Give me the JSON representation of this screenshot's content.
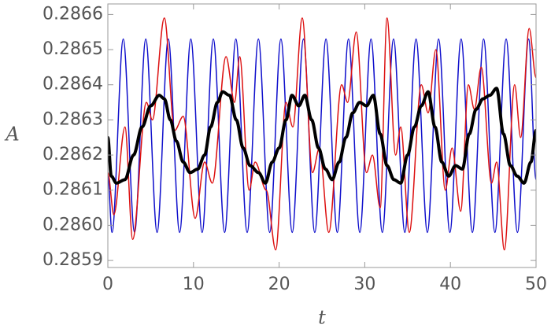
{
  "chart_data": {
    "type": "line",
    "x_label": "t",
    "y_label": "A",
    "xlim": [
      0,
      50
    ],
    "xticks": [
      0,
      10,
      20,
      30,
      40,
      50
    ],
    "ylim": [
      0.28588,
      0.28663
    ],
    "yticks": [
      0.2859,
      {
        "value": 0.286,
        "label": "0.2860"
      },
      0.2861,
      0.2862,
      0.2863,
      0.2864,
      0.2865,
      0.2866
    ],
    "series": [
      {
        "color": "#1010cc",
        "width": 1.5,
        "x": [
          0,
          0.49,
          1.8,
          3.12,
          4.43,
          5.75,
          7.06,
          8.38,
          9.69,
          11.01,
          12.32,
          13.64,
          14.95,
          16.27,
          17.58,
          18.9,
          20.21,
          21.53,
          22.84,
          24.16,
          25.47,
          26.79,
          28.1,
          29.42,
          30.73,
          32.05,
          33.36,
          34.68,
          35.99,
          37.31,
          38.62,
          39.94,
          41.25,
          42.57,
          43.88,
          45.2,
          46.51,
          47.83,
          49.14,
          50
        ],
        "values": [
          0.28614,
          0.28598,
          0.28653,
          0.28598,
          0.28653,
          0.28598,
          0.28653,
          0.28598,
          0.28653,
          0.28598,
          0.28653,
          0.28598,
          0.28653,
          0.28598,
          0.28653,
          0.28598,
          0.28653,
          0.28598,
          0.28653,
          0.28598,
          0.28653,
          0.28598,
          0.28653,
          0.28598,
          0.28653,
          0.28598,
          0.28653,
          0.28598,
          0.28653,
          0.28598,
          0.28653,
          0.28598,
          0.28653,
          0.28598,
          0.28653,
          0.28598,
          0.28653,
          0.28598,
          0.28653,
          0.28613
        ]
      },
      {
        "color": "#dd1111",
        "width": 1.5,
        "x": [
          0,
          0.7,
          2.0,
          2.9,
          4.5,
          5.2,
          6.6,
          7.8,
          8.8,
          10.2,
          11.3,
          12.2,
          13.8,
          14.8,
          15.4,
          16.5,
          17.2,
          18.5,
          19.6,
          20.8,
          21.6,
          22.7,
          23.9,
          24.7,
          25.8,
          27.3,
          28.0,
          29.0,
          30.2,
          30.9,
          31.8,
          32.6,
          33.6,
          34.2,
          35.2,
          36.6,
          37.4,
          38.3,
          39.4,
          40.2,
          41.2,
          42.1,
          42.8,
          43.6,
          44.8,
          45.4,
          46.3,
          47.5,
          48.2,
          49.2,
          50
        ],
        "values": [
          0.28615,
          0.28603,
          0.28628,
          0.28596,
          0.28635,
          0.2863,
          0.28659,
          0.28627,
          0.28631,
          0.28602,
          0.28618,
          0.28612,
          0.28648,
          0.28635,
          0.28648,
          0.2861,
          0.28618,
          0.2861,
          0.28593,
          0.28635,
          0.28628,
          0.28659,
          0.28615,
          0.28622,
          0.28598,
          0.2864,
          0.28635,
          0.28655,
          0.28615,
          0.2862,
          0.28605,
          0.28659,
          0.2862,
          0.28628,
          0.28598,
          0.2864,
          0.28632,
          0.2865,
          0.2861,
          0.28622,
          0.28604,
          0.2864,
          0.28633,
          0.28645,
          0.28612,
          0.28618,
          0.28593,
          0.2864,
          0.28625,
          0.28656,
          0.28642
        ]
      },
      {
        "color": "#000000",
        "width": 4,
        "x": [
          0,
          0.4,
          1,
          2,
          3,
          4,
          5,
          6,
          6.6,
          7.3,
          8.0,
          8.8,
          9.6,
          10.5,
          11.3,
          12.0,
          12.8,
          13.4,
          14.2,
          15.0,
          15.8,
          16.6,
          17.6,
          18.4,
          19.2,
          20.0,
          20.8,
          21.5,
          22.3,
          23.0,
          23.8,
          24.6,
          25.4,
          26.2,
          27.0,
          27.8,
          28.6,
          29.4,
          30.2,
          31.0,
          31.8,
          32.6,
          33.4,
          34.2,
          35.0,
          35.8,
          36.6,
          37.4,
          38.2,
          39.0,
          39.8,
          40.6,
          41.4,
          42.2,
          43.0,
          43.8,
          44.6,
          45.4,
          46.2,
          47.0,
          47.8,
          48.6,
          49.4,
          50
        ],
        "values": [
          0.28625,
          0.28614,
          0.28612,
          0.28613,
          0.2862,
          0.28628,
          0.28634,
          0.28637,
          0.28636,
          0.2863,
          0.28624,
          0.28618,
          0.28615,
          0.28616,
          0.2862,
          0.28628,
          0.28635,
          0.28638,
          0.28637,
          0.2863,
          0.28622,
          0.28617,
          0.28615,
          0.28612,
          0.28618,
          0.28622,
          0.2863,
          0.28637,
          0.28634,
          0.28637,
          0.2863,
          0.28622,
          0.28616,
          0.28613,
          0.28618,
          0.28625,
          0.28632,
          0.28635,
          0.28634,
          0.28637,
          0.28626,
          0.28617,
          0.28613,
          0.28612,
          0.2862,
          0.28628,
          0.28634,
          0.28638,
          0.28628,
          0.28618,
          0.28614,
          0.28617,
          0.28616,
          0.28626,
          0.28633,
          0.28636,
          0.28637,
          0.28639,
          0.28626,
          0.28617,
          0.28614,
          0.28612,
          0.28618,
          0.28627
        ]
      }
    ]
  }
}
